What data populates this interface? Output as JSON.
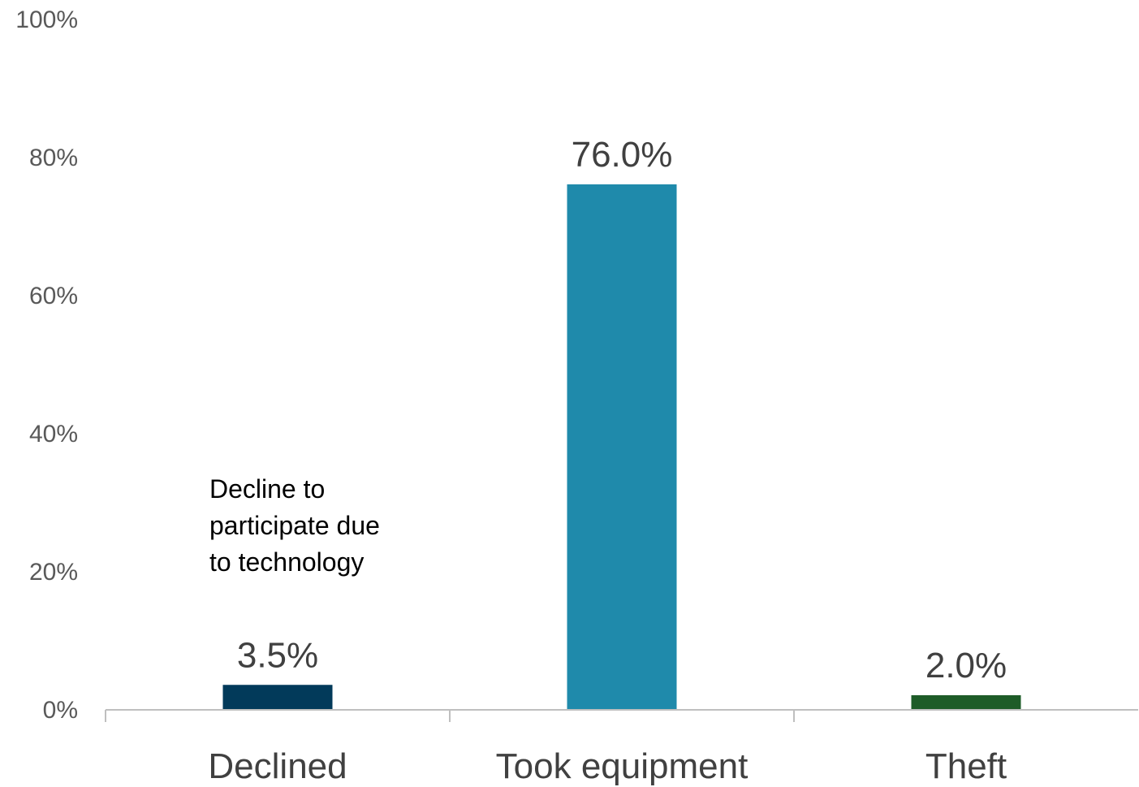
{
  "chart_data": {
    "type": "bar",
    "categories": [
      "Declined",
      "Took equipment",
      "Theft"
    ],
    "values": [
      3.5,
      76.0,
      2.0
    ],
    "data_labels": [
      "3.5%",
      "76.0%",
      "2.0%"
    ],
    "bar_colors": [
      "#023a5a",
      "#1f8aab",
      "#1e5c28"
    ],
    "ylim": [
      0,
      100
    ],
    "y_ticks": [
      0,
      20,
      40,
      60,
      80,
      100
    ],
    "y_tick_labels": [
      "0%",
      "20%",
      "40%",
      "60%",
      "80%",
      "100%"
    ],
    "grid": false,
    "legend": "none",
    "annotation": {
      "lines": [
        "Decline to",
        "participate due",
        "to technology"
      ]
    }
  }
}
